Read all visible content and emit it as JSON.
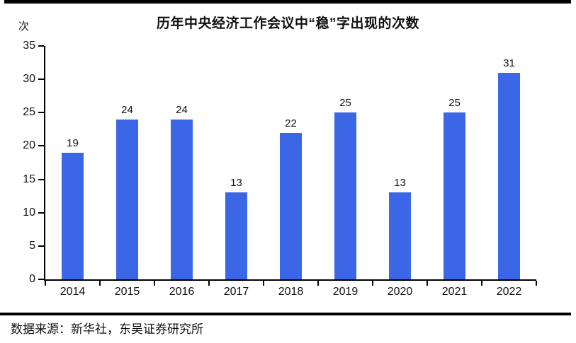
{
  "page": {
    "unit_label": "次",
    "source_text": "数据来源：新华社，东吴证券研究所"
  },
  "chart_data": {
    "type": "bar",
    "title": "历年中央经济工作会议中“稳”字出现的次数",
    "categories": [
      "2014",
      "2015",
      "2016",
      "2017",
      "2018",
      "2019",
      "2020",
      "2021",
      "2022"
    ],
    "values": [
      19,
      24,
      24,
      13,
      22,
      25,
      13,
      25,
      31
    ],
    "xlabel": "",
    "ylabel": "次",
    "ylim": [
      0,
      35
    ],
    "yticks": [
      0,
      5,
      10,
      15,
      20,
      25,
      30,
      35
    ],
    "bar_color": "#3B66E6",
    "axis_color": "#000000",
    "grid": false,
    "legend_position": "none"
  }
}
